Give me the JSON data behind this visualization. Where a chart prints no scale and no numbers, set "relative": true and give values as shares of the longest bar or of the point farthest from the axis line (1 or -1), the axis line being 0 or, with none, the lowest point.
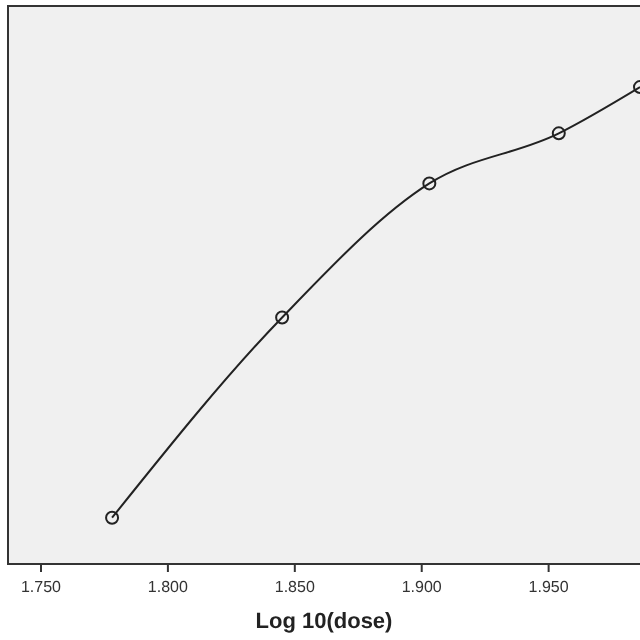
{
  "chart_data": {
    "type": "line",
    "xlabel": "Log 10(dose)",
    "relative": true,
    "x": [
      1.778,
      1.845,
      1.903,
      1.954,
      1.986
    ],
    "series": [
      {
        "color": "#222222",
        "values": [
          0.097,
          0.517,
          0.798,
          0.903,
          1
        ]
      }
    ],
    "xlim": [
      1.737,
      1.986
    ],
    "xticks": [
      {
        "value": 1.75,
        "label": "1.750"
      },
      {
        "value": 1.8,
        "label": "1.800"
      },
      {
        "value": 1.85,
        "label": "1.850"
      },
      {
        "value": 1.9,
        "label": "1.900"
      },
      {
        "value": 1.95,
        "label": "1.950"
      }
    ],
    "marker": "circle",
    "line_style": "solid",
    "grid": false
  }
}
